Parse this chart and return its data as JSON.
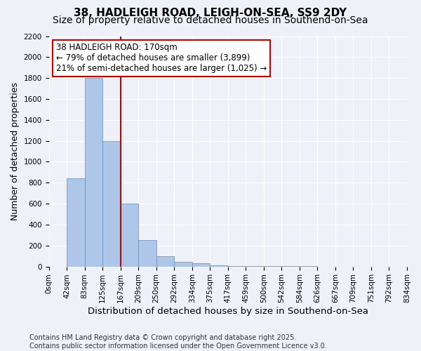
{
  "title1": "38, HADLEIGH ROAD, LEIGH-ON-SEA, SS9 2DY",
  "title2": "Size of property relative to detached houses in Southend-on-Sea",
  "xlabel": "Distribution of detached houses by size in Southend-on-Sea",
  "ylabel": "Number of detached properties",
  "bar_values": [
    0,
    840,
    1800,
    1200,
    600,
    255,
    100,
    45,
    30,
    10,
    5,
    3,
    2,
    1,
    1,
    0,
    0,
    0,
    0,
    0
  ],
  "x_labels": [
    "0sqm",
    "42sqm",
    "83sqm",
    "125sqm",
    "167sqm",
    "209sqm",
    "250sqm",
    "292sqm",
    "334sqm",
    "375sqm",
    "417sqm",
    "459sqm",
    "500sqm",
    "542sqm",
    "584sqm",
    "626sqm",
    "667sqm",
    "709sqm",
    "751sqm",
    "792sqm",
    "834sqm"
  ],
  "bar_color": "#aec6e8",
  "bar_edge_color": "#5a8fc4",
  "background_color": "#eef2f8",
  "grid_color": "#ffffff",
  "vline_x": 3.5,
  "vline_color": "#cc0000",
  "annotation_text": "38 HADLEIGH ROAD: 170sqm\n← 79% of detached houses are smaller (3,899)\n21% of semi-detached houses are larger (1,025) →",
  "annotation_box_color": "#ffffff",
  "annotation_box_edge": "#cc0000",
  "ylim": [
    0,
    2200
  ],
  "yticks": [
    0,
    200,
    400,
    600,
    800,
    1000,
    1200,
    1400,
    1600,
    1800,
    2000,
    2200
  ],
  "footnote": "Contains HM Land Registry data © Crown copyright and database right 2025.\nContains public sector information licensed under the Open Government Licence v3.0.",
  "title1_fontsize": 11,
  "title2_fontsize": 10,
  "xlabel_fontsize": 9.5,
  "ylabel_fontsize": 9,
  "tick_fontsize": 7.5,
  "annotation_fontsize": 8.5,
  "footnote_fontsize": 7
}
